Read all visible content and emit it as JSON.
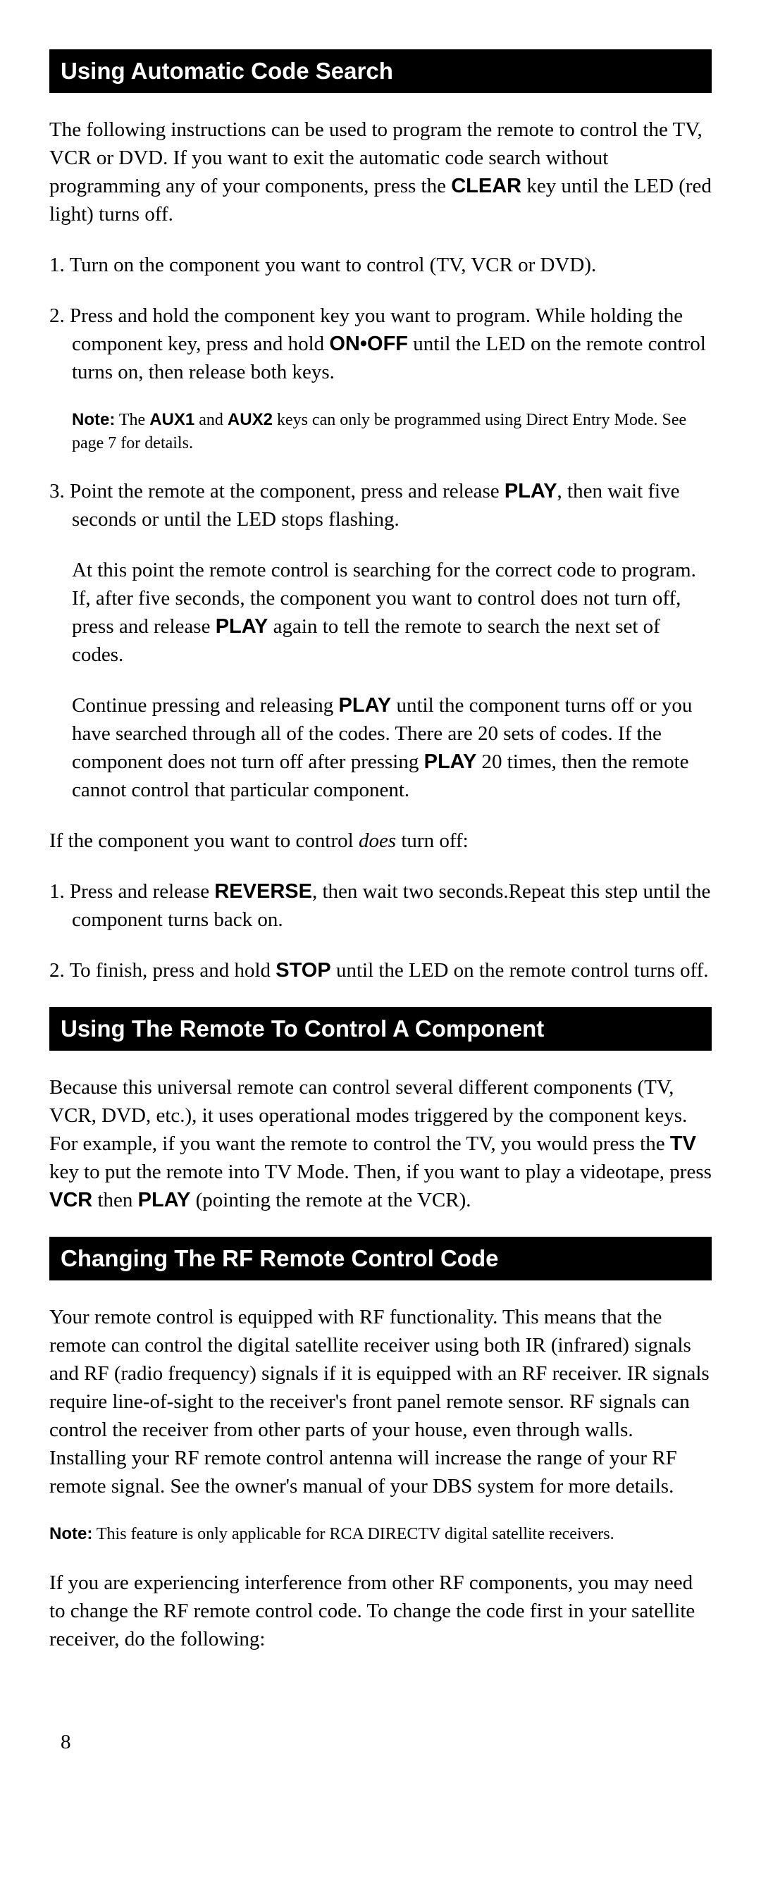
{
  "section1": {
    "heading": "Using Automatic Code Search",
    "intro_a": "The following instructions can be used to program the remote to control the TV, VCR or DVD. If you want to exit the automatic code search without programming any of your components, press the ",
    "intro_clear": "CLEAR",
    "intro_b": " key until the LED (red light) turns off.",
    "step1": "1. Turn on the component you want to control (TV, VCR or DVD).",
    "step2_a": "2. Press and hold the component key you want to program. While holding the component key, press and hold ",
    "step2_onoff": "ON•OFF",
    "step2_b": " until the LED on the remote control turns on, then release both keys.",
    "note1_label": "Note:",
    "note1_a": " The ",
    "note1_aux1": "AUX1",
    "note1_b": " and ",
    "note1_aux2": "AUX2",
    "note1_c": " keys can only be programmed using Direct Entry Mode. See page 7 for details.",
    "step3_a": "3. Point the remote at the component, press and release ",
    "step3_play": "PLAY",
    "step3_b": ", then wait five seconds or until the LED stops flashing.",
    "step3_sub1_a": "At this point the remote control is searching for the correct code to program. If, after five seconds, the component you want to control does not turn off, press and release ",
    "step3_sub1_play": "PLAY",
    "step3_sub1_b": " again to tell the remote to search the next set of codes.",
    "step3_sub2_a": "Continue pressing and releasing ",
    "step3_sub2_play1": "PLAY",
    "step3_sub2_b": " until the component turns off or you have searched through all of the codes. There are 20 sets of codes. If the component does not turn off after pressing ",
    "step3_sub2_play2": "PLAY",
    "step3_sub2_c": " 20 times, then the remote cannot control that particular component.",
    "if_a": "If the component you want to control ",
    "if_does": "does",
    "if_b": " turn off:",
    "bstep1_a": "1. Press and release ",
    "bstep1_reverse": "REVERSE",
    "bstep1_b": ", then wait two seconds.Repeat this step until the component turns back on.",
    "bstep2_a": "2. To finish, press and hold ",
    "bstep2_stop": "STOP",
    "bstep2_b": " until the LED on the remote control turns off."
  },
  "section2": {
    "heading": "Using The Remote To Control A Component",
    "body_a": "Because this universal remote can control several different components (TV, VCR, DVD, etc.), it uses operational modes triggered by the component keys. For example, if you want the remote to control the TV, you would press the ",
    "body_tv": "TV",
    "body_b": " key to put the remote into TV Mode. Then, if you want to play a videotape, press ",
    "body_vcr": "VCR",
    "body_c": " then ",
    "body_play": "PLAY",
    "body_d": " (pointing the remote at the VCR)."
  },
  "section3": {
    "heading": "Changing The RF Remote Control Code",
    "body1": "Your remote control is equipped with RF functionality. This means that the remote can control the digital satellite receiver using both IR (infrared) signals and RF (radio frequency) signals if it is equipped with an RF receiver. IR signals require line-of-sight to the receiver's front panel remote sensor. RF signals can control the receiver from other parts of your house, even through walls. Installing your RF remote control antenna will increase the range of your RF remote signal. See the owner's manual of your DBS system for more details.",
    "note_label": "Note:",
    "note_body": " This feature is only applicable for RCA DIRECTV digital satellite receivers.",
    "body2": "If you are experiencing interference from other RF components, you may need to change the RF remote control code. To change the code first in your satellite receiver, do the following:"
  },
  "page_number": "8"
}
